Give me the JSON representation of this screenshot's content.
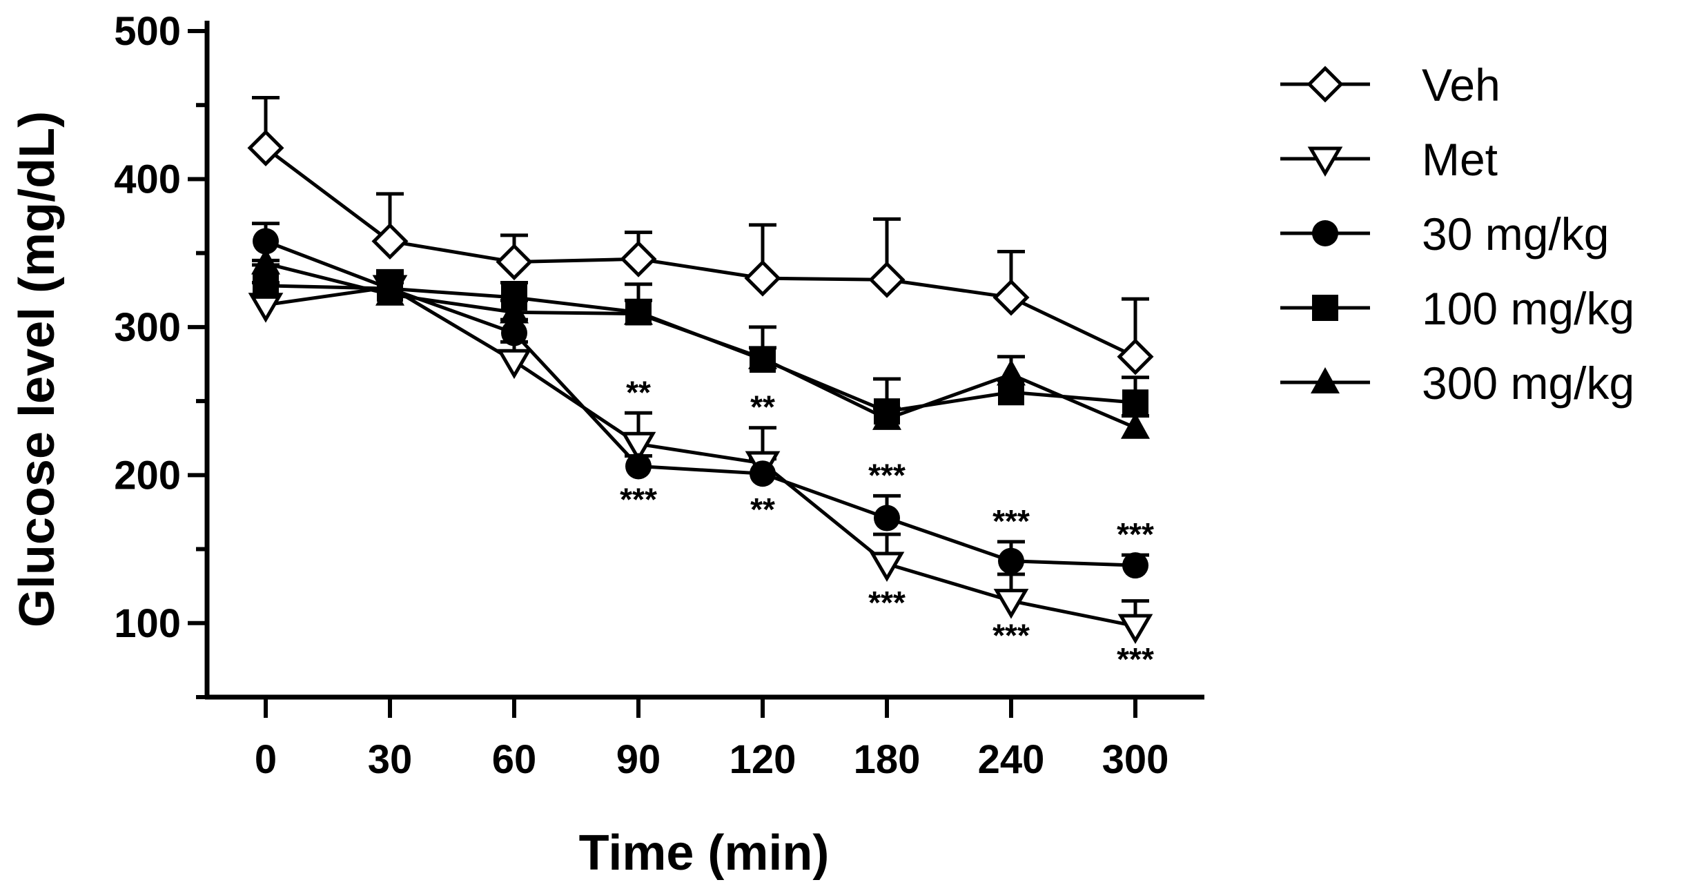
{
  "chart_data": {
    "type": "line",
    "title": "",
    "xlabel": "Time (min)",
    "ylabel": "Glucose level (mg/dL)",
    "categories": [
      "0",
      "30",
      "60",
      "90",
      "120",
      "180",
      "240",
      "300"
    ],
    "yticks": [
      100,
      200,
      300,
      400,
      500
    ],
    "ylim": [
      50,
      500
    ],
    "grid": false,
    "legend_position": "right",
    "series": [
      {
        "name": "Veh",
        "marker": "diamond-open",
        "values": [
          421,
          358,
          344,
          346,
          333,
          332,
          320,
          280
        ],
        "error_upper": [
          455,
          390,
          362,
          364,
          369,
          373,
          351,
          319
        ],
        "annotations_above": [
          "",
          "",
          "",
          "",
          "",
          "",
          "",
          ""
        ],
        "annotations_below": [
          "",
          "",
          "",
          "",
          "",
          "",
          "",
          ""
        ]
      },
      {
        "name": "Met",
        "marker": "triangle-down-open",
        "values": [
          315,
          327,
          277,
          221,
          208,
          140,
          115,
          98
        ],
        "error_upper": [
          330,
          336,
          290,
          242,
          232,
          160,
          133,
          115
        ],
        "annotations_above": [
          "",
          "",
          "",
          "**",
          "**",
          "",
          "",
          ""
        ],
        "annotations_below": [
          "",
          "",
          "",
          "",
          "",
          "***",
          "***",
          "***"
        ]
      },
      {
        "name": "30 mg/kg",
        "marker": "circle-filled",
        "values": [
          358,
          326,
          296,
          206,
          201,
          171,
          142,
          139
        ],
        "error_upper": [
          370,
          338,
          305,
          213,
          211,
          186,
          155,
          146
        ],
        "annotations_above": [
          "",
          "",
          "",
          "",
          "",
          "***",
          "***",
          "***"
        ],
        "annotations_below": [
          "",
          "",
          "",
          "***",
          "**",
          "",
          "",
          ""
        ]
      },
      {
        "name": "100 mg/kg",
        "marker": "square-filled",
        "values": [
          328,
          326,
          320,
          310,
          278,
          243,
          256,
          249
        ],
        "error_upper": [
          342,
          336,
          330,
          329,
          300,
          265,
          264,
          266
        ],
        "annotations_above": [
          "",
          "",
          "",
          "",
          "",
          "",
          "",
          ""
        ],
        "annotations_below": [
          "",
          "",
          "",
          "",
          "",
          "",
          "",
          ""
        ]
      },
      {
        "name": "300 mg/kg",
        "marker": "triangle-up-filled",
        "values": [
          343,
          322,
          310,
          309,
          279,
          238,
          268,
          232
        ],
        "error_upper": [
          345,
          330,
          318,
          318,
          286,
          245,
          280,
          240
        ],
        "annotations_above": [
          "",
          "",
          "",
          "",
          "",
          "",
          "",
          ""
        ],
        "annotations_below": [
          "",
          "",
          "",
          "",
          "",
          "",
          "",
          ""
        ]
      }
    ]
  }
}
